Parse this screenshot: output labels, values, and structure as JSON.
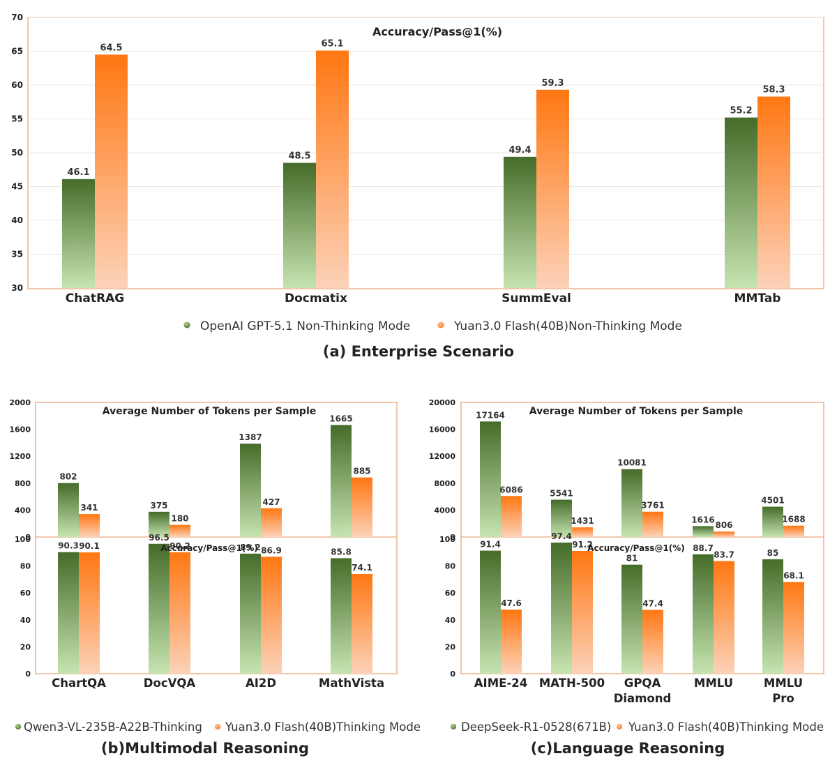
{
  "colors": {
    "green_top": "#456c2a",
    "green_bottom": "#c4e2ae",
    "orange_top": "#ff7712",
    "orange_bottom": "#fbcfb4",
    "frame": "#e9a77d",
    "grid": "#ece6df"
  },
  "chart_data": [
    {
      "type": "bar",
      "caption": "(a) Enterprise Scenario",
      "title": "Accuracy/Pass@1(%)",
      "categories": [
        "ChatRAG",
        "Docmatix",
        "SummEval",
        "MMTab"
      ],
      "series": [
        {
          "name": "OpenAI GPT-5.1 Non-Thinking Mode",
          "values": [
            46.1,
            48.5,
            49.4,
            55.2
          ]
        },
        {
          "name": "Yuan3.0 Flash(40B)Non-Thinking Mode",
          "values": [
            64.5,
            65.1,
            59.3,
            58.3
          ]
        }
      ],
      "ylim": [
        30,
        70
      ],
      "yticks": [
        30,
        35,
        40,
        45,
        50,
        55,
        60,
        65,
        70
      ],
      "grid": true,
      "legend": "bottom"
    },
    {
      "type": "bar",
      "caption": "(b)Multimodal Reasoning",
      "categories": [
        "ChartQA",
        "DocVQA",
        "AI2D",
        "MathVista"
      ],
      "legend": "bottom",
      "series_names": [
        "Qwen3-VL-235B-A22B-Thinking",
        "Yuan3.0 Flash(40B)Thinking Mode"
      ],
      "panels": [
        {
          "title": "Average Number of Tokens per Sample",
          "ylim": [
            0,
            2000
          ],
          "yticks": [
            0,
            400,
            800,
            1200,
            1600,
            2000
          ],
          "values": [
            [
              802,
              375,
              1387,
              1665
            ],
            [
              341,
              180,
              427,
              885
            ]
          ],
          "labels": [
            [
              "802",
              "375",
              "1387",
              "1665"
            ],
            [
              "341",
              "180",
              "427",
              "885"
            ]
          ]
        },
        {
          "title": "Accuracy/Pass@1(%)",
          "ylim": [
            0,
            100
          ],
          "yticks": [
            0,
            20,
            40,
            60,
            80,
            100
          ],
          "values": [
            [
              90.3,
              96.5,
              89.2,
              85.8
            ],
            [
              90.1,
              90.2,
              86.9,
              74.1
            ]
          ],
          "labels": [
            [
              "90.3",
              "96.5",
              "89.2",
              "85.8"
            ],
            [
              "90.1",
              "90.2",
              "86.9",
              "74.1"
            ]
          ]
        }
      ]
    },
    {
      "type": "bar",
      "caption": "(c)Language Reasoning",
      "categories": [
        "AIME-24",
        "MATH-500",
        "GPQA Diamond",
        "MMLU",
        "MMLU Pro"
      ],
      "legend": "bottom",
      "series_names": [
        "DeepSeek-R1-0528(671B)",
        "Yuan3.0 Flash(40B)Thinking Mode"
      ],
      "panels": [
        {
          "title": "Average Number of Tokens per Sample",
          "ylim": [
            0,
            20000
          ],
          "yticks": [
            0,
            4000,
            8000,
            12000,
            16000,
            20000
          ],
          "values": [
            [
              17164,
              5541,
              10081,
              1616,
              4501
            ],
            [
              6086,
              1431,
              3761,
              806,
              1688
            ]
          ],
          "labels": [
            [
              "17164",
              "5541",
              "10081",
              "1616",
              "4501"
            ],
            [
              "6086",
              "1431",
              "3761",
              "806",
              "1688"
            ]
          ]
        },
        {
          "title": "Accuracy/Pass@1(%)",
          "ylim": [
            0,
            100
          ],
          "yticks": [
            0,
            20,
            40,
            60,
            80,
            100
          ],
          "values": [
            [
              91.4,
              97.4,
              81,
              88.7,
              85
            ],
            [
              47.6,
              91.2,
              47.4,
              83.7,
              68.1
            ]
          ],
          "labels": [
            [
              "91.4",
              "97.4",
              "81",
              "88.7",
              "85"
            ],
            [
              "47.6",
              "91.2",
              "47.4",
              "83.7",
              "68.1"
            ]
          ]
        }
      ]
    }
  ]
}
